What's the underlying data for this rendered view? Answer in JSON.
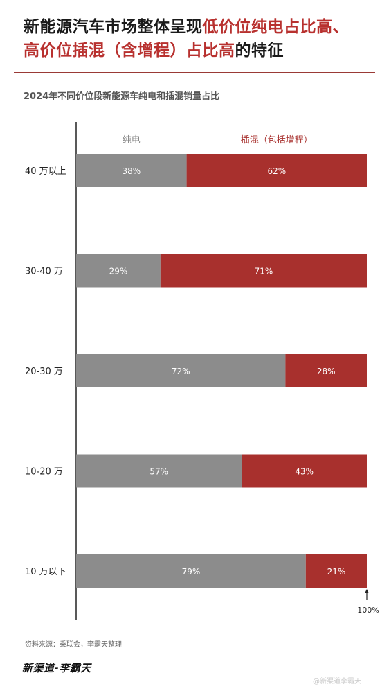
{
  "header": {
    "title_part1": "新能源汽车市场整体呈现",
    "title_highlight1": "低价位纯电占比高、",
    "title_highlight2": "高价位插混（含增程）占比高",
    "title_part2": "的特征",
    "subtitle": "2024年不同价位段新能源车纯电和插混销量占比"
  },
  "colors": {
    "ev": "#8c8c8c",
    "phev": "#a8302d",
    "highlight": "#b8312f",
    "axis": "#222222"
  },
  "chart_data": {
    "type": "bar",
    "orientation": "horizontal",
    "stacked": true,
    "percent": true,
    "categories": [
      "40 万以上",
      "30-40 万",
      "20-30 万",
      "10-20 万",
      "10 万以下"
    ],
    "series": [
      {
        "name": "纯电",
        "values": [
          38,
          29,
          72,
          57,
          79
        ]
      },
      {
        "name": "插混（包括增程）",
        "values": [
          62,
          71,
          28,
          43,
          21
        ]
      }
    ],
    "value_suffix": "%",
    "xlim": [
      0,
      100
    ],
    "end_marker": "100%",
    "legend": "top"
  },
  "footer": {
    "source": "资料来源：乘联会，李霸天整理",
    "brand": "新渠道-李霸天",
    "weibo": "@新渠道李霸天"
  }
}
